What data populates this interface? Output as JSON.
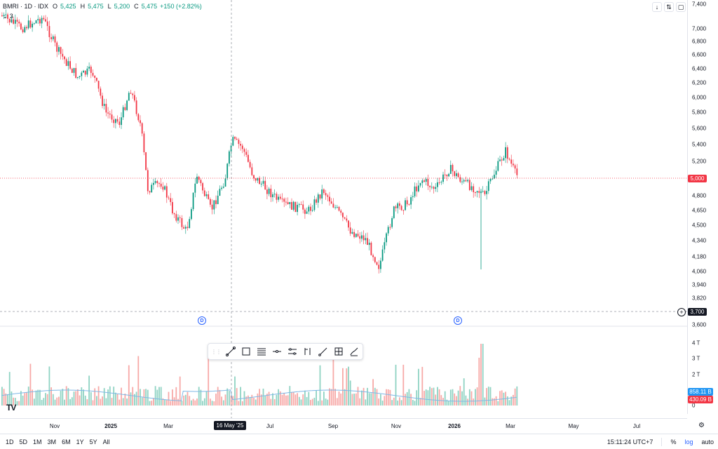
{
  "legend": {
    "symbol": "BMRI · 1D · IDX",
    "o_label": "O",
    "o_value": "5,425",
    "h_label": "H",
    "h_value": "5,475",
    "l_label": "L",
    "l_value": "5,200",
    "c_label": "C",
    "c_value": "5,475",
    "change": "+150 (+2.82%)",
    "indicator_count": "3"
  },
  "colors": {
    "up": "#089981",
    "down": "#f23645",
    "ma": "#7fb8e6",
    "accent": "#2962ff"
  },
  "price_ticks": [
    "7,400",
    "7,000",
    "6,800",
    "6,600",
    "6,400",
    "6,200",
    "6,000",
    "5,800",
    "5,600",
    "5,400",
    "5,200",
    "4,800",
    "4,650",
    "4,500",
    "4,340",
    "4,180",
    "4,060",
    "3,940",
    "3,820",
    "3,600"
  ],
  "volume_ticks": [
    "4 T",
    "3 T",
    "2 T",
    "0"
  ],
  "badges": {
    "last_price": "5,000",
    "crosshair_price": "3,700",
    "volume_a": "858.11 B",
    "volume_b": "430.09 B"
  },
  "time_ticks": [
    {
      "label": "Nov",
      "bold": false
    },
    {
      "label": "2025",
      "bold": true
    },
    {
      "label": "Mar",
      "bold": false
    },
    {
      "label": "Jul",
      "bold": false
    },
    {
      "label": "Sep",
      "bold": false
    },
    {
      "label": "Nov",
      "bold": false
    },
    {
      "label": "2026",
      "bold": true
    },
    {
      "label": "Mar",
      "bold": false
    },
    {
      "label": "May",
      "bold": false
    },
    {
      "label": "Jul",
      "bold": false
    }
  ],
  "crosshair_date": "16 May '25",
  "dividend_marker": "D",
  "ranges": [
    "1D",
    "5D",
    "1M",
    "3M",
    "6M",
    "1Y",
    "5Y",
    "All"
  ],
  "bottom_right": {
    "clock": "15:11:24 UTC+7",
    "percent": "%",
    "log": "log",
    "auto": "auto"
  },
  "drawing_tools": [
    "trend-line-icon",
    "rectangle-icon",
    "fib-retracement-icon",
    "horizontal-line-icon",
    "parallel-channel-icon",
    "long-position-icon",
    "ray-icon",
    "measure-icon",
    "brush-icon"
  ],
  "top_controls": [
    "arrow-down-icon",
    "collapse-icon",
    "refresh-icon"
  ],
  "logo": "TV"
}
